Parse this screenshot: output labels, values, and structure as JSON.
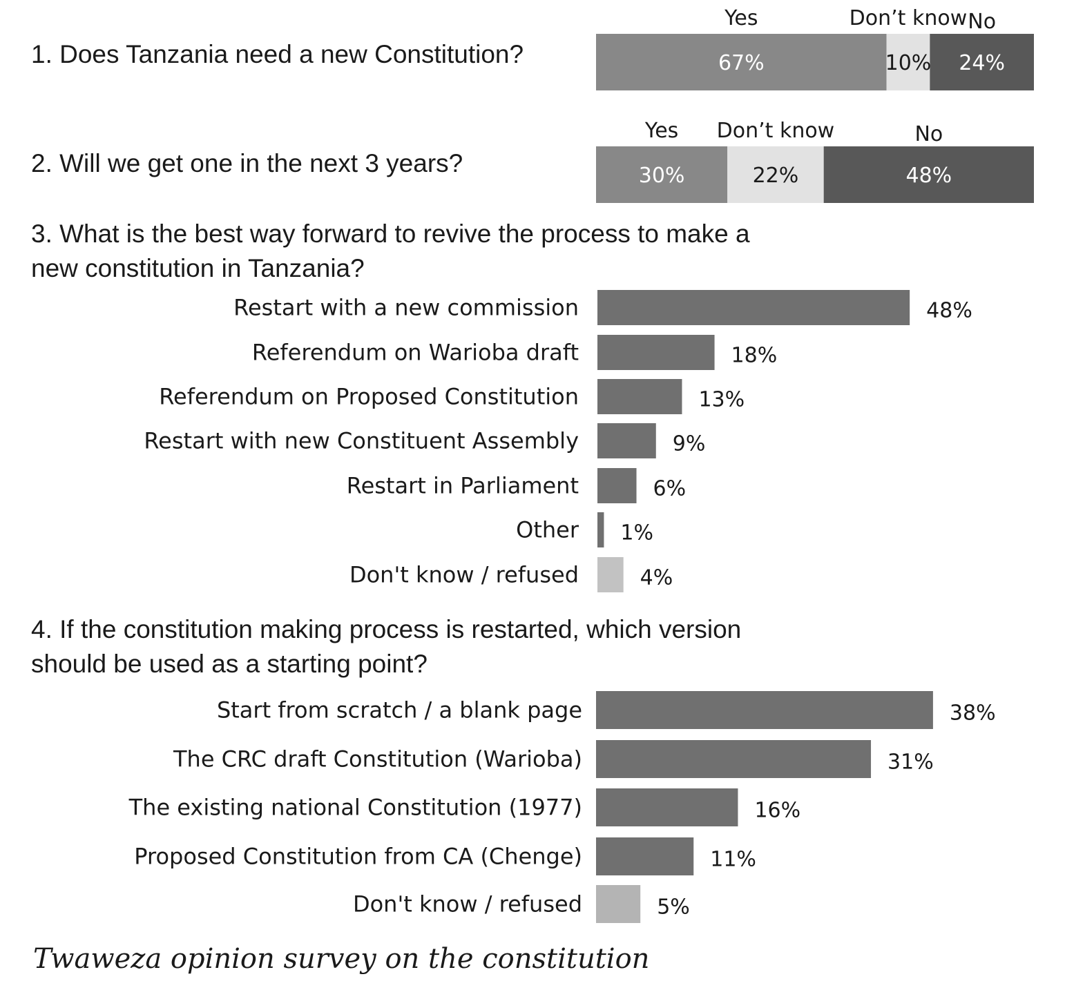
{
  "caption": "Twaweza opinion survey on the constitution",
  "colors": {
    "yes": "#888888",
    "dont_know": "#e2e2e2",
    "no": "#585858",
    "bar": "#707070",
    "bar_dk": "#c2c2c2",
    "bar_dk4": "#b4b4b4",
    "text": "#1a1a1a",
    "label_on_dark": "#ffffff"
  },
  "chart_data": [
    {
      "type": "bar",
      "orientation": "horizontal-stacked",
      "title": "1. Does Tanzania need a new Constitution?",
      "series": [
        {
          "name": "Yes",
          "values": [
            67
          ],
          "label": "67%"
        },
        {
          "name": "Don’t know",
          "values": [
            10
          ],
          "label": "10%"
        },
        {
          "name": "No",
          "values": [
            24
          ],
          "label": "24%"
        }
      ]
    },
    {
      "type": "bar",
      "orientation": "horizontal-stacked",
      "title": "2. Will we get one in the next 3 years?",
      "series": [
        {
          "name": "Yes",
          "values": [
            30
          ],
          "label": "30%"
        },
        {
          "name": "Don’t know",
          "values": [
            22
          ],
          "label": "22%"
        },
        {
          "name": "No",
          "values": [
            48
          ],
          "label": "48%"
        }
      ]
    },
    {
      "type": "bar",
      "orientation": "horizontal",
      "title": "3. What is the best way forward to revive the process to make a new constitution in Tanzania?",
      "categories": [
        "Restart with a new commission",
        "Referendum on Warioba draft",
        "Referendum on Proposed Constitution",
        "Restart with new Constituent Assembly",
        "Restart in Parliament",
        "Other",
        "Don't know / refused"
      ],
      "values": [
        48,
        18,
        13,
        9,
        6,
        1,
        4
      ],
      "labels": [
        "48%",
        "18%",
        "13%",
        "9%",
        "6%",
        "1%",
        "4%"
      ]
    },
    {
      "type": "bar",
      "orientation": "horizontal",
      "title": "4. If the constitution making process is restarted, which version should be used as a starting point?",
      "categories": [
        "Start from scratch / a blank page",
        "The CRC draft Constitution (Warioba)",
        "The existing national Constitution (1977)",
        "Proposed Constitution from CA (Chenge)",
        "Don't know / refused"
      ],
      "values": [
        38,
        31,
        16,
        11,
        5
      ],
      "labels": [
        "38%",
        "31%",
        "16%",
        "11%",
        "5%"
      ]
    }
  ]
}
